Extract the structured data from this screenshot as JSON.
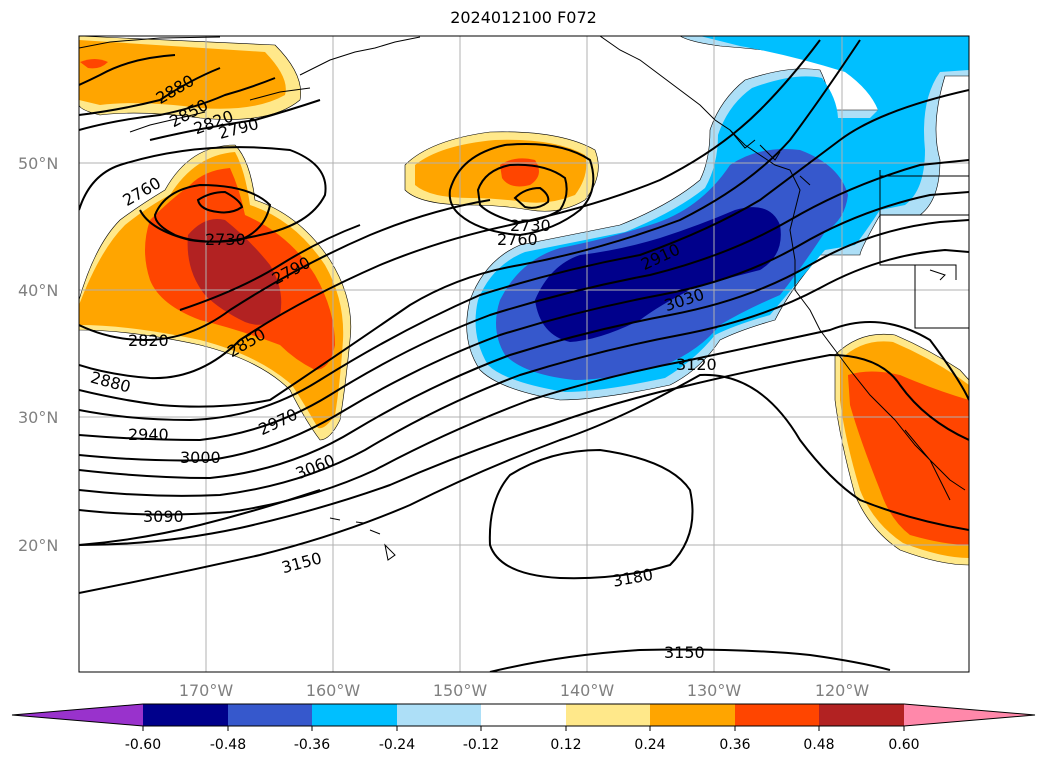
{
  "title": "2024012100 F072",
  "colors": {
    "neg_060_plus": "#9932CC",
    "neg_048_060": "#00008B",
    "neg_036_048": "#3658CC",
    "neg_024_036": "#00BFFF",
    "neg_012_024": "#ADDFF7",
    "neutral": "#FFFFFF",
    "pos_012_024": "#FFE88A",
    "pos_024_036": "#FFA500",
    "pos_036_048": "#FF4500",
    "pos_048_060": "#B22222",
    "pos_060_plus": "#FF88AA",
    "contour": "#000000",
    "coastline": "#000000",
    "grid": "#b0b0b0"
  },
  "map": {
    "lon_range": [
      -180,
      -110
    ],
    "lat_range": [
      10,
      60
    ],
    "lat_labels": [
      "50°N",
      "40°N",
      "30°N",
      "20°N"
    ],
    "lon_labels": [
      "170°W",
      "160°W",
      "150°W",
      "140°W",
      "130°W",
      "120°W"
    ],
    "grid": true
  },
  "contour_labels": [
    "2880",
    "2850",
    "2820",
    "2790",
    "2760",
    "2730",
    "2790",
    "2850",
    "2820",
    "2880",
    "2940",
    "3000",
    "2970",
    "3060",
    "3090",
    "3150",
    "2730",
    "2760",
    "2910",
    "3030",
    "3120",
    "3180",
    "3150"
  ],
  "colorbar": {
    "type": "horizontal",
    "extend": "both",
    "ticks": [
      "-0.60",
      "-0.48",
      "-0.36",
      "-0.24",
      "-0.12",
      "0.12",
      "0.24",
      "0.36",
      "0.48",
      "0.60"
    ]
  }
}
